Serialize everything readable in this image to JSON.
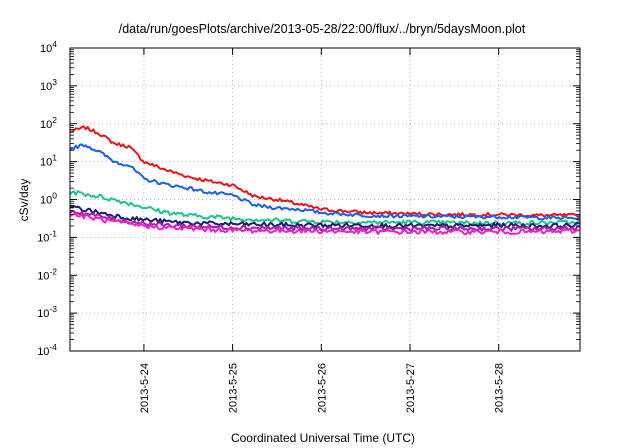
{
  "chart_data": {
    "type": "line",
    "title": "/data/run/goesPlots/archive/2013-05-28/22:00/flux/../bryn/5daysMoon.plot",
    "xlabel": "Coordinated Universal Time (UTC)",
    "ylabel": "cSv/day",
    "yscale": "log",
    "ylim": [
      0.0001,
      10000
    ],
    "xlim": [
      "2013-05-23 04:00",
      "2013-05-28 22:00"
    ],
    "grid": true,
    "x_ticks": [
      "2013-5-24",
      "2013-5-25",
      "2013-5-26",
      "2013-5-27",
      "2013-5-28"
    ],
    "y_ticks": [
      {
        "base": "10",
        "exp": "4"
      },
      {
        "base": "10",
        "exp": "3"
      },
      {
        "base": "10",
        "exp": "2"
      },
      {
        "base": "10",
        "exp": "1"
      },
      {
        "base": "10",
        "exp": "0"
      },
      {
        "base": "10",
        "exp": "-1"
      },
      {
        "base": "10",
        "exp": "-2"
      },
      {
        "base": "10",
        "exp": "-3"
      },
      {
        "base": "10",
        "exp": "-4"
      }
    ],
    "series": [
      {
        "color": "#e8141c",
        "x": [
          "2013-05-23 04:00",
          "2013-05-23 08:00",
          "2013-05-23 12:00",
          "2013-05-23 16:00",
          "2013-05-23 20:00",
          "2013-05-24 00:00",
          "2013-05-24 06:00",
          "2013-05-24 12:00",
          "2013-05-24 18:00",
          "2013-05-25 00:00",
          "2013-05-25 06:00",
          "2013-05-25 12:00",
          "2013-05-25 18:00",
          "2013-05-26 00:00",
          "2013-05-26 12:00",
          "2013-05-27 00:00",
          "2013-05-27 12:00",
          "2013-05-28 00:00",
          "2013-05-28 12:00",
          "2013-05-28 22:00"
        ],
        "values": [
          62,
          80,
          55,
          30,
          25,
          10,
          6,
          4,
          3,
          2.4,
          1.2,
          1.0,
          0.75,
          0.55,
          0.45,
          0.42,
          0.4,
          0.4,
          0.38,
          0.38
        ]
      },
      {
        "color": "#1c5fe8",
        "x": [
          "2013-05-23 04:00",
          "2013-05-23 08:00",
          "2013-05-23 12:00",
          "2013-05-23 16:00",
          "2013-05-23 20:00",
          "2013-05-24 00:00",
          "2013-05-24 06:00",
          "2013-05-24 12:00",
          "2013-05-24 18:00",
          "2013-05-25 00:00",
          "2013-05-25 06:00",
          "2013-05-25 12:00",
          "2013-05-25 18:00",
          "2013-05-26 00:00",
          "2013-05-26 12:00",
          "2013-05-27 00:00",
          "2013-05-27 12:00",
          "2013-05-28 00:00",
          "2013-05-28 12:00",
          "2013-05-28 22:00"
        ],
        "values": [
          22,
          28,
          18,
          10,
          8,
          3.5,
          2.5,
          2.0,
          1.5,
          1.3,
          0.7,
          0.6,
          0.55,
          0.45,
          0.38,
          0.36,
          0.35,
          0.35,
          0.33,
          0.32
        ]
      },
      {
        "color": "#1ec48a",
        "x": [
          "2013-05-23 04:00",
          "2013-05-23 12:00",
          "2013-05-23 20:00",
          "2013-05-24 04:00",
          "2013-05-24 12:00",
          "2013-05-25 00:00",
          "2013-05-25 12:00",
          "2013-05-26 00:00",
          "2013-05-26 12:00",
          "2013-05-27 00:00",
          "2013-05-27 12:00",
          "2013-05-28 00:00",
          "2013-05-28 12:00",
          "2013-05-28 22:00"
        ],
        "values": [
          1.6,
          1.2,
          0.8,
          0.5,
          0.38,
          0.32,
          0.28,
          0.26,
          0.25,
          0.25,
          0.24,
          0.24,
          0.24,
          0.25
        ]
      },
      {
        "color": "#1b1b6e",
        "x": [
          "2013-05-23 04:00",
          "2013-05-23 12:00",
          "2013-05-23 20:00",
          "2013-05-24 06:00",
          "2013-05-24 18:00",
          "2013-05-25 06:00",
          "2013-05-25 18:00",
          "2013-05-26 12:00",
          "2013-05-27 00:00",
          "2013-05-27 12:00",
          "2013-05-28 00:00",
          "2013-05-28 12:00",
          "2013-05-28 22:00"
        ],
        "values": [
          0.65,
          0.45,
          0.32,
          0.26,
          0.23,
          0.22,
          0.21,
          0.21,
          0.2,
          0.2,
          0.21,
          0.2,
          0.21
        ]
      },
      {
        "color": "#a21caf",
        "x": [
          "2013-05-23 04:00",
          "2013-05-23 12:00",
          "2013-05-23 20:00",
          "2013-05-24 06:00",
          "2013-05-24 18:00",
          "2013-05-25 06:00",
          "2013-05-25 18:00",
          "2013-05-26 12:00",
          "2013-05-27 00:00",
          "2013-05-27 12:00",
          "2013-05-28 00:00",
          "2013-05-28 12:00",
          "2013-05-28 22:00"
        ],
        "values": [
          0.5,
          0.36,
          0.26,
          0.21,
          0.19,
          0.18,
          0.17,
          0.17,
          0.17,
          0.17,
          0.17,
          0.17,
          0.18
        ]
      },
      {
        "color": "#f01fc8",
        "x": [
          "2013-05-23 04:00",
          "2013-05-23 12:00",
          "2013-05-23 20:00",
          "2013-05-24 06:00",
          "2013-05-24 18:00",
          "2013-05-25 06:00",
          "2013-05-25 18:00",
          "2013-05-26 12:00",
          "2013-05-27 00:00",
          "2013-05-27 12:00",
          "2013-05-28 00:00",
          "2013-05-28 12:00",
          "2013-05-28 22:00"
        ],
        "values": [
          0.42,
          0.3,
          0.22,
          0.18,
          0.16,
          0.15,
          0.15,
          0.14,
          0.14,
          0.14,
          0.14,
          0.14,
          0.15
        ]
      }
    ]
  }
}
